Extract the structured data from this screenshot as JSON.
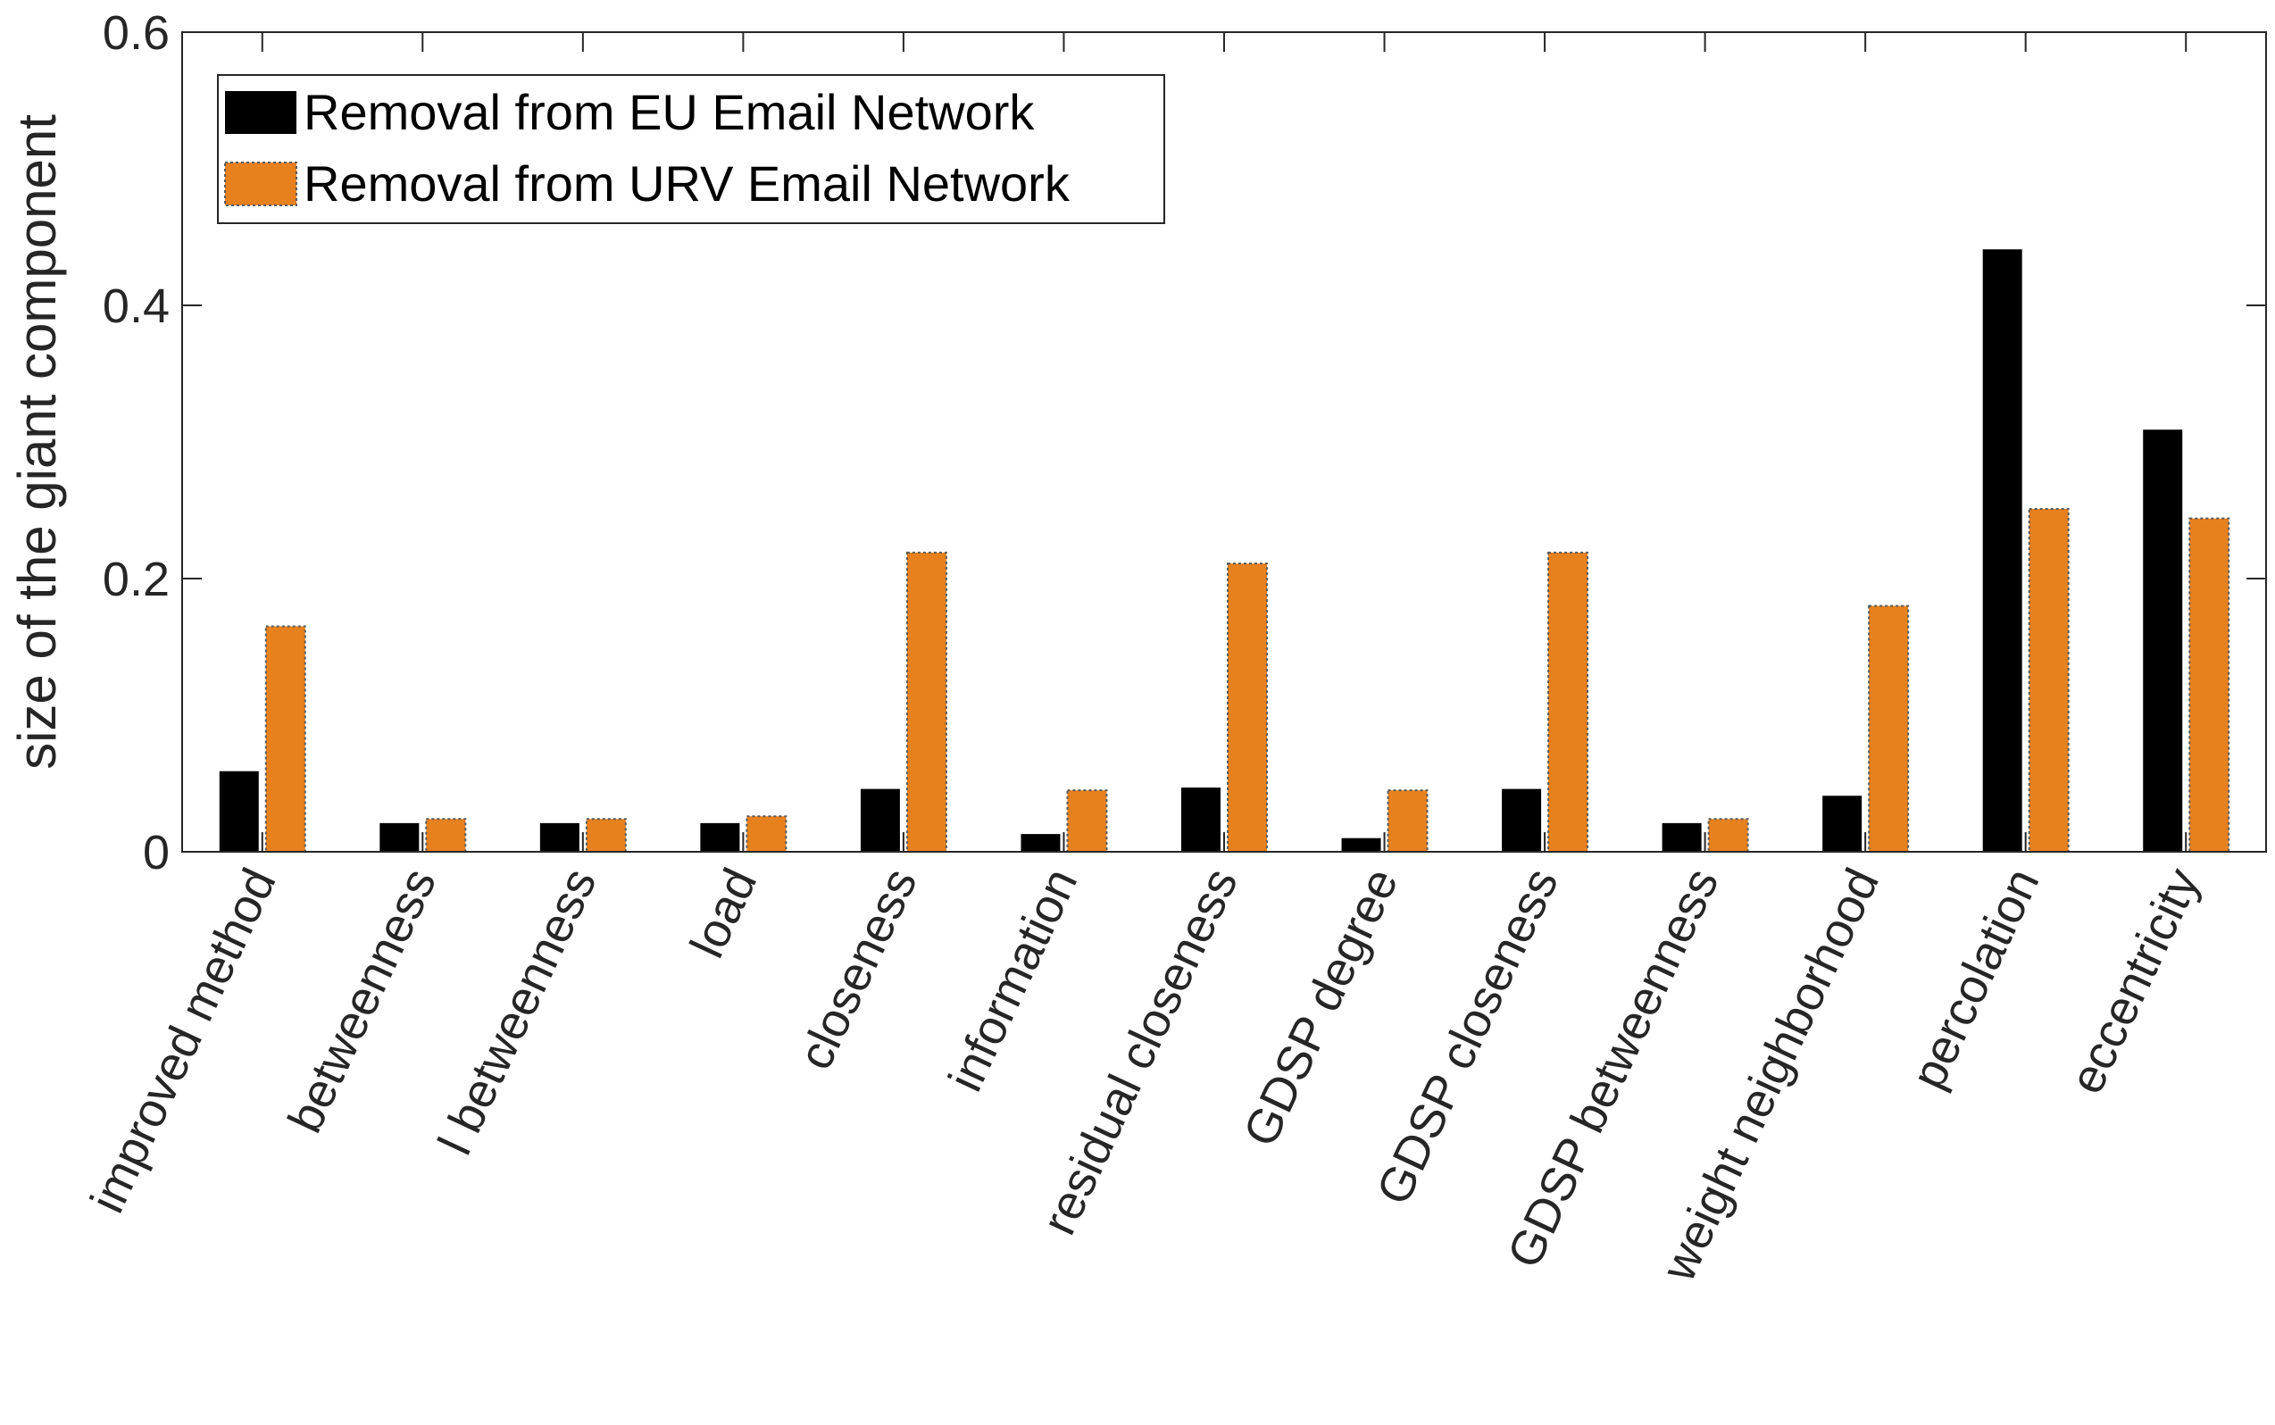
{
  "chart_data": {
    "type": "bar",
    "title": "",
    "xlabel": "",
    "ylabel": "size of the giant component",
    "ylim": [
      0,
      0.6
    ],
    "yticks": [
      0,
      0.2,
      0.4,
      0.6
    ],
    "ytick_labels": [
      "0",
      "0.2",
      "0.4",
      "0.6"
    ],
    "grid": false,
    "legend_position": "top-left",
    "categories": [
      "improved method",
      "betweenness",
      "l betweenness",
      "load",
      "closeness",
      "information",
      "residual closeness",
      "GDSP degree",
      "GDSP closeness",
      "GDSP betweenness",
      "weight neighborhood",
      "percolation",
      "eccentricity"
    ],
    "series": [
      {
        "name": "Removal from EU Email Network",
        "color": "#000000",
        "values": [
          0.059,
          0.021,
          0.021,
          0.021,
          0.046,
          0.013,
          0.047,
          0.01,
          0.046,
          0.021,
          0.041,
          0.441,
          0.309
        ]
      },
      {
        "name": "Removal from URV Email Network",
        "color": "#e6811e",
        "values": [
          0.165,
          0.024,
          0.024,
          0.026,
          0.219,
          0.045,
          0.211,
          0.045,
          0.219,
          0.024,
          0.18,
          0.251,
          0.244
        ]
      }
    ]
  }
}
